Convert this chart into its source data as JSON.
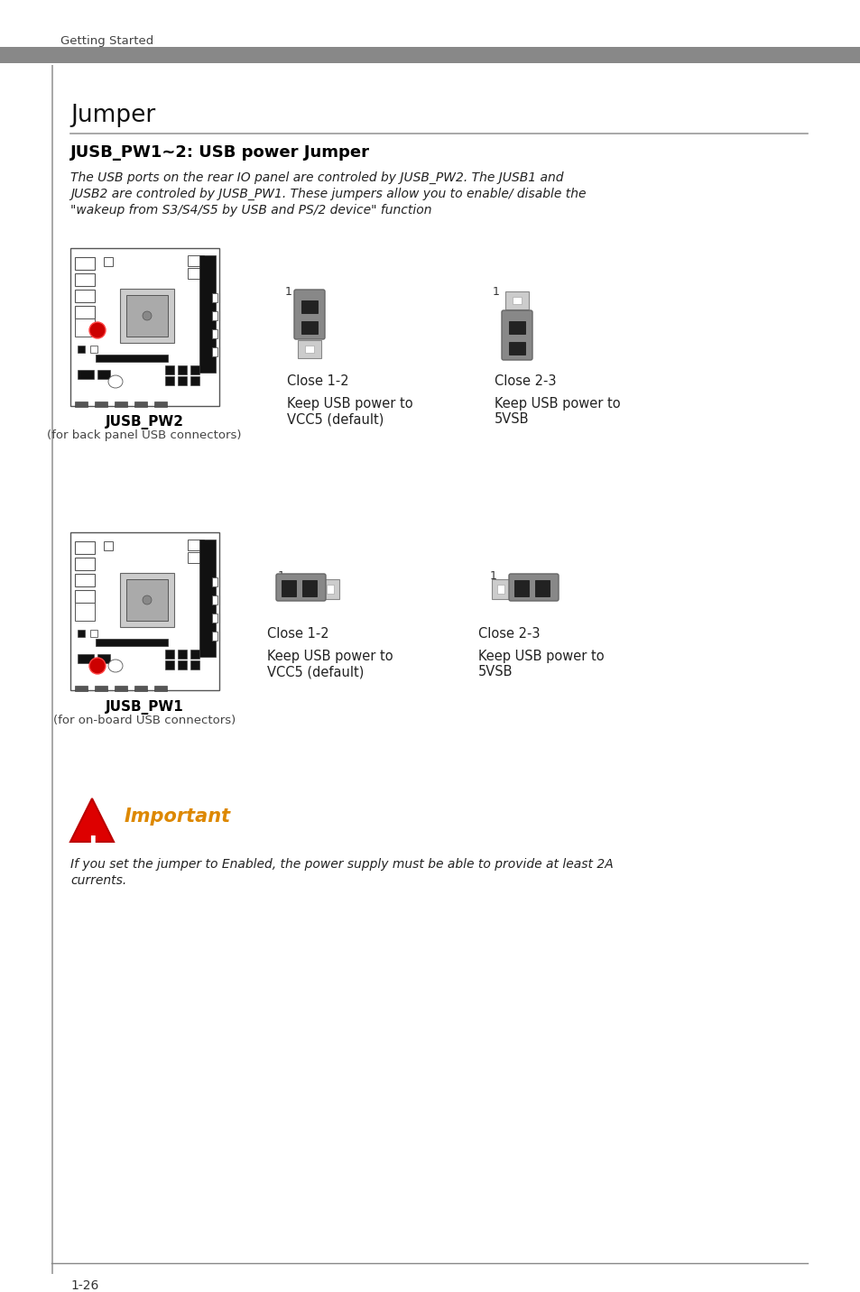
{
  "page_bg": "#ffffff",
  "header_bar_color": "#888888",
  "header_text": "Getting Started",
  "header_text_color": "#444444",
  "section_title": "Jumper",
  "section_title_line_color": "#999999",
  "subsection_title": "JUSB_PW1~2: USB power Jumper",
  "body_text_line1": "The USB ports on the rear IO panel are controled by JUSB_PW2. The JUSB1 and",
  "body_text_line2": "JUSB2 are controled by JUSB_PW1. These jumpers allow you to enable/ disable the",
  "body_text_line3": "\"wakeup from S3/S4/S5 by USB and PS/2 device\" function",
  "label_pw2": "JUSB_PW2",
  "label_pw2_sub": "(for back panel USB connectors)",
  "label_pw1": "JUSB_PW1",
  "label_pw1_sub": "(for on-board USB connectors)",
  "close12_label": "Close 1-2",
  "close23_label": "Close 2-3",
  "keep_vcc5_line1": "Keep USB power to",
  "keep_vcc5_line2": "VCC5 (default)",
  "keep_5vsb_line1": "Keep USB power to",
  "keep_5vsb_line2": "5VSB",
  "important_text": "Important",
  "important_body_line1": "If you set the jumper to Enabled, the power supply must be able to provide at least 2A",
  "important_body_line2": "currents.",
  "footer_text": "1-26",
  "red_color": "#cc0000",
  "jumper_dark": "#333333",
  "jumper_cap": "#888888",
  "jumper_pin_light": "#cccccc",
  "jumper_cap_dark": "#555555"
}
